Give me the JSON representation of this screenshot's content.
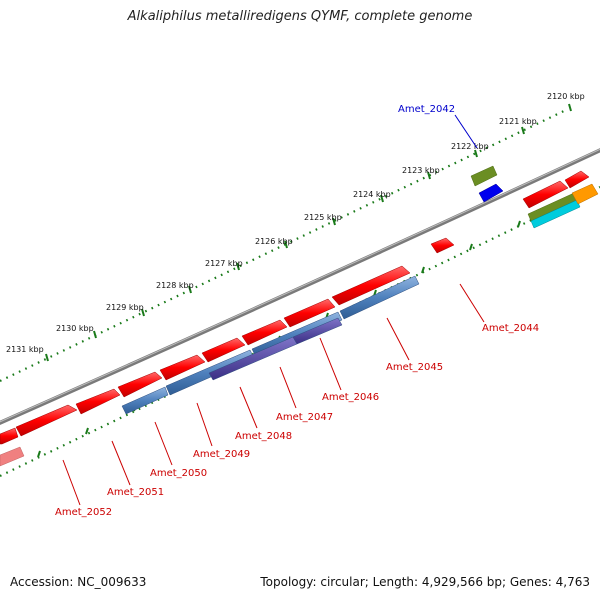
{
  "title": "Alkaliphilus metalliredigens QYMF, complete genome",
  "footer": {
    "accession": "Accession: NC_009633",
    "stats": "Topology: circular; Length: 4,929,566 bp; Genes: 4,763"
  },
  "kbp_labels": [
    "2120 kbp",
    "2121 kbp",
    "2122 kbp",
    "2123 kbp",
    "2124 kbp",
    "2125 kbp",
    "2126 kbp",
    "2127 kbp",
    "2128 kbp",
    "2129 kbp",
    "2130 kbp",
    "2131 kbp"
  ],
  "gene_labels": [
    {
      "text": "Amet_2042",
      "color": "#0000cc"
    },
    {
      "text": "Amet_2044",
      "color": "#cc0000"
    },
    {
      "text": "Amet_2045",
      "color": "#cc0000"
    },
    {
      "text": "Amet_2046",
      "color": "#cc0000"
    },
    {
      "text": "Amet_2047",
      "color": "#cc0000"
    },
    {
      "text": "Amet_2048",
      "color": "#cc0000"
    },
    {
      "text": "Amet_2049",
      "color": "#cc0000"
    },
    {
      "text": "Amet_2050",
      "color": "#cc0000"
    },
    {
      "text": "Amet_2051",
      "color": "#cc0000"
    },
    {
      "text": "Amet_2052",
      "color": "#cc0000"
    }
  ],
  "colors": {
    "backbone": "#808080",
    "forward_gene": "#ff0000",
    "reverse_gene": "#4f81bd",
    "reverse_gene_dark": "#4b3f9e",
    "tick_outer": "#1a7a1a",
    "tick_inner": "#1a7a1a",
    "gene_2042": "#0000ee",
    "gene_olive": "#6b8e23",
    "gene_orange": "#ff9900",
    "gene_cyan": "#00ccdd",
    "gene_pink": "#f08080"
  }
}
